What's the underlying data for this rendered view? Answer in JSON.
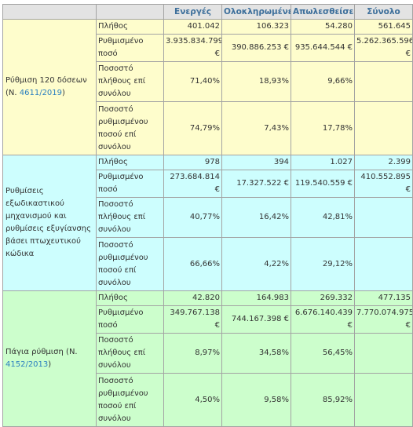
{
  "headers": [
    "",
    "",
    "Ενεργές",
    "Ολοκληρωμένες",
    "Απωλεσθείσες",
    "Σύνολο"
  ],
  "groups": [
    {
      "name_prefix": "Ρύθμιση 120 δόσεων (Ν. ",
      "name_link": "4611/2019",
      "name_suffix": ")",
      "rows": [
        {
          "label": "Πλήθος",
          "values": [
            "401.042",
            "106.323",
            "54.280",
            "561.645"
          ]
        },
        {
          "label": "Ρυθμισμένο ποσό",
          "values": [
            "3.935.834.799 €",
            "390.886.253 €",
            "935.644.544 €",
            "5.262.365.596 €"
          ]
        },
        {
          "label": "Ποσοστό πλήθους επί συνόλου",
          "values": [
            "71,40%",
            "18,93%",
            "9,66%",
            ""
          ]
        },
        {
          "label": "Ποσοστό ρυθμισμένου ποσού επί συνόλου",
          "values": [
            "74,79%",
            "7,43%",
            "17,78%",
            ""
          ]
        }
      ]
    },
    {
      "name_prefix": "Ρυθμίσεις εξωδικαστικού μηχανισμού και ρυθμίσεις εξυγίανσης βάσει πτωχευτικού κώδικα",
      "name_link": "",
      "name_suffix": "",
      "rows": [
        {
          "label": "Πλήθος",
          "values": [
            "978",
            "394",
            "1.027",
            "2.399"
          ]
        },
        {
          "label": "Ρυθμισμένο ποσό",
          "values": [
            "273.684.814 €",
            "17.327.522 €",
            "119.540.559 €",
            "410.552.895 €"
          ]
        },
        {
          "label": "Ποσοστό πλήθους επί συνόλου",
          "values": [
            "40,77%",
            "16,42%",
            "42,81%",
            ""
          ]
        },
        {
          "label": "Ποσοστό ρυθμισμένου ποσού επί συνόλου",
          "values": [
            "66,66%",
            "4,22%",
            "29,12%",
            ""
          ]
        }
      ]
    },
    {
      "name_prefix": "Πάγια ρύθμιση (Ν. ",
      "name_link": "4152/2013",
      "name_suffix": ")",
      "rows": [
        {
          "label": "Πλήθος",
          "values": [
            "42.820",
            "164.983",
            "269.332",
            "477.135"
          ]
        },
        {
          "label": "Ρυθμισμένο ποσό",
          "values": [
            "349.767.138 €",
            "744.167.398 €",
            "6.676.140.439 €",
            "7.770.074.975 €"
          ]
        },
        {
          "label": "Ποσοστό πλήθους επί συνόλου",
          "values": [
            "8,97%",
            "34,58%",
            "56,45%",
            ""
          ]
        },
        {
          "label": "Ποσοστό ρυθμισμένου ποσού επί συνόλου",
          "values": [
            "4,50%",
            "9,58%",
            "85,92%",
            ""
          ]
        }
      ]
    }
  ]
}
